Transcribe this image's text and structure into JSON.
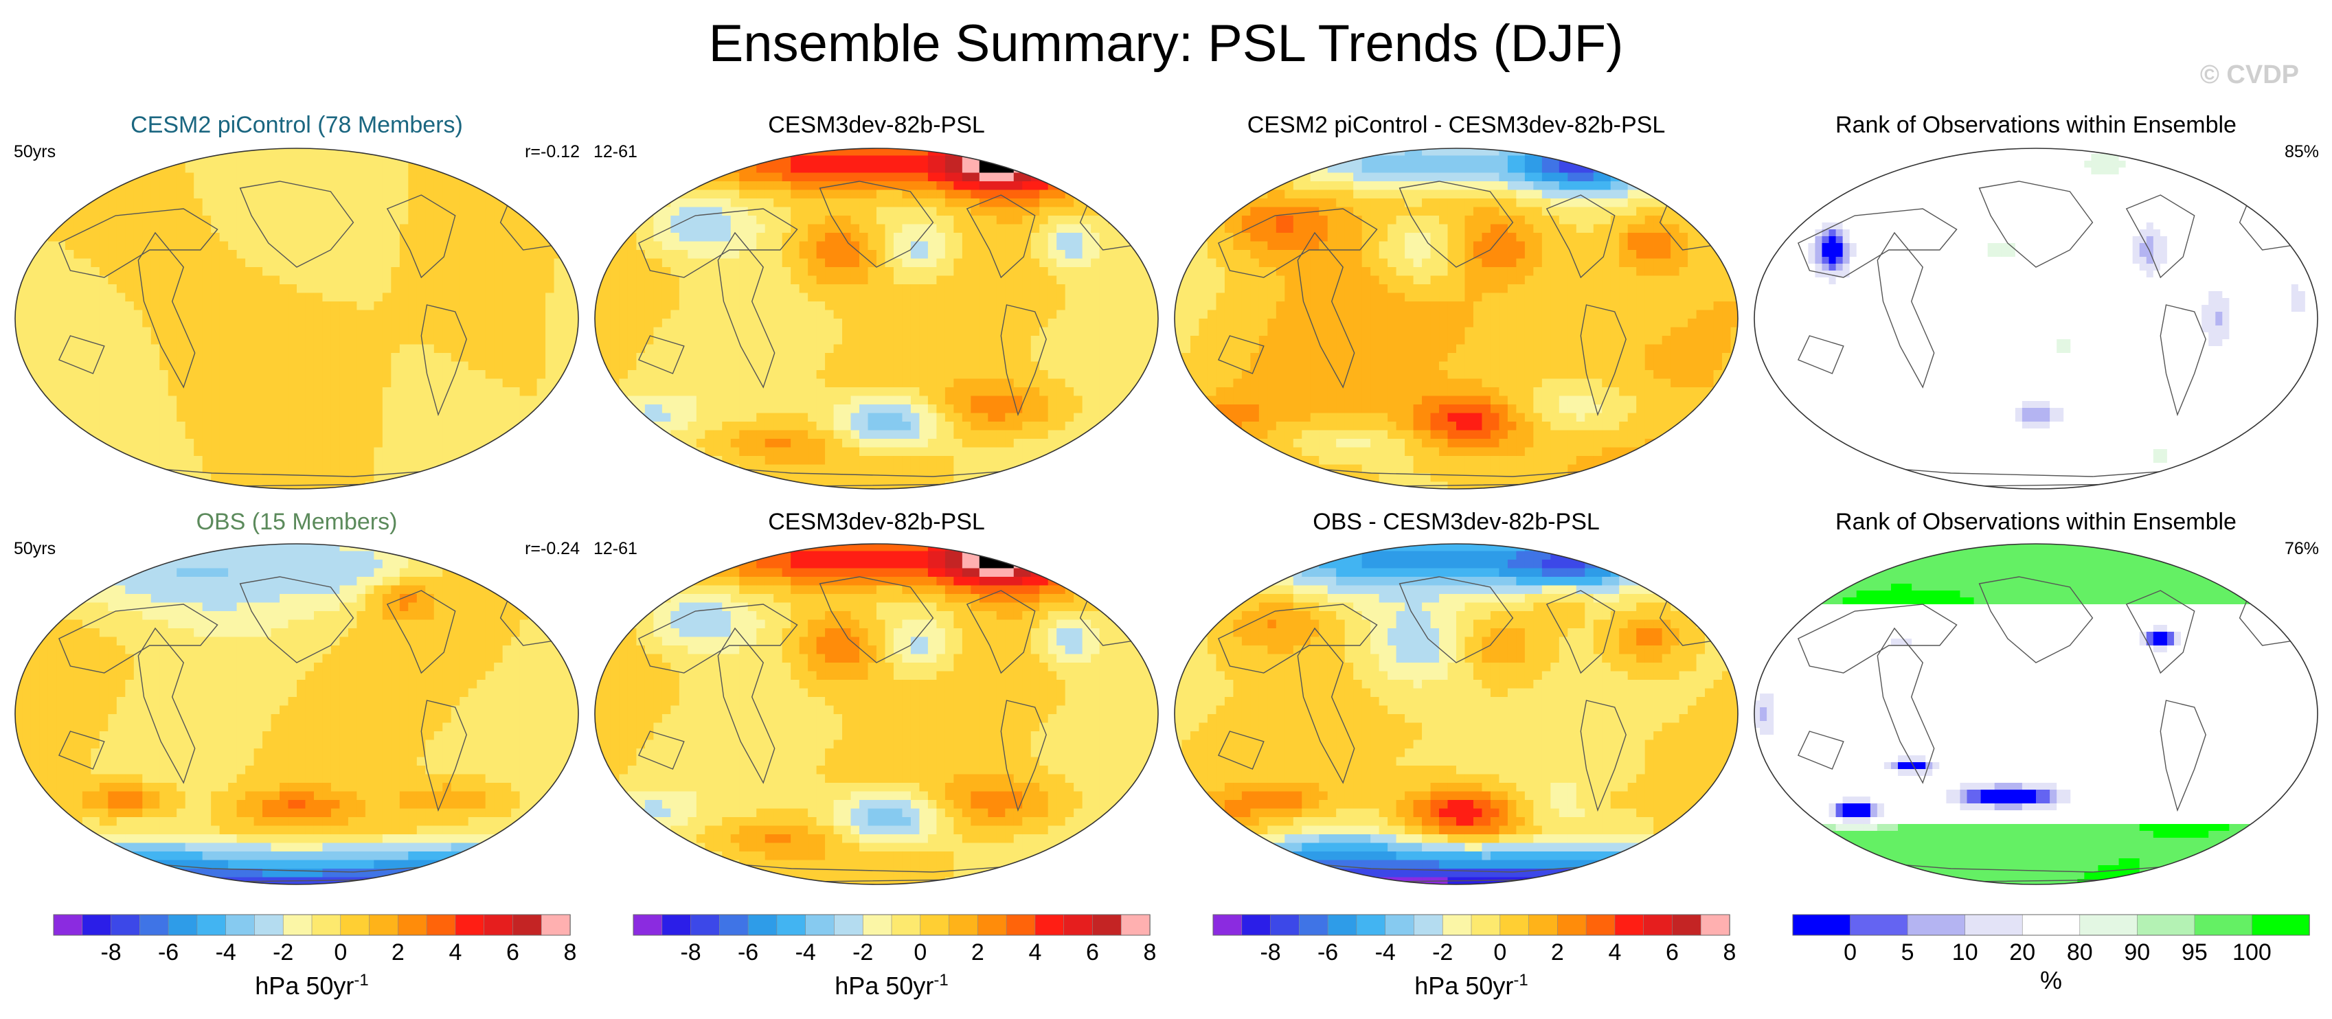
{
  "title": "Ensemble Summary: PSL Trends (DJF)",
  "watermark": "© CVDP",
  "panels": [
    {
      "title": "CESM2 piControl (78 Members)",
      "title_color": "#1a6680",
      "left_label": "50yrs",
      "right_label": "r=-0.12",
      "field": "ens_mean",
      "amp": 0.6
    },
    {
      "title": "CESM3dev-82b-PSL",
      "title_color": "#000000",
      "left_label": "12-61",
      "right_label": "",
      "field": "model",
      "amp": 1.0
    },
    {
      "title": "CESM2 piControl - CESM3dev-82b-PSL",
      "title_color": "#000000",
      "left_label": "",
      "right_label": "",
      "field": "diff_ens",
      "amp": 1.0
    },
    {
      "title": "Rank of Observations within Ensemble",
      "title_color": "#000000",
      "left_label": "",
      "right_label": "85%",
      "field": "rank_ens",
      "amp": 1.0
    },
    {
      "title": "OBS (15 Members)",
      "title_color": "#5b8a5b",
      "left_label": "50yrs",
      "right_label": "r=-0.24",
      "field": "obs",
      "amp": 1.0
    },
    {
      "title": "CESM3dev-82b-PSL",
      "title_color": "#000000",
      "left_label": "12-61",
      "right_label": "",
      "field": "model",
      "amp": 1.0
    },
    {
      "title": "OBS - CESM3dev-82b-PSL",
      "title_color": "#000000",
      "left_label": "",
      "right_label": "",
      "field": "diff_obs",
      "amp": 1.0
    },
    {
      "title": "Rank of Observations within Ensemble",
      "title_color": "#000000",
      "left_label": "",
      "right_label": "76%",
      "field": "rank_obs",
      "amp": 1.0
    }
  ],
  "colorbars": [
    {
      "label": "hPa 50yr",
      "label_sup": "-1"
    },
    {
      "label": "hPa 50yr",
      "label_sup": "-1"
    },
    {
      "label": "hPa 50yr",
      "label_sup": "-1"
    },
    {
      "label": "%",
      "label_sup": ""
    }
  ],
  "chart_data": {
    "type": "heatmap",
    "projection": "robinson",
    "units": "hPa 50yr-1",
    "trend_levels": [
      -9,
      -8,
      -7,
      -6,
      -5,
      -4,
      -3,
      -2,
      -1,
      0,
      1,
      2,
      3,
      4,
      5,
      6,
      7,
      8,
      9
    ],
    "trend_ticks": [
      -8,
      -6,
      -4,
      -2,
      0,
      2,
      4,
      6,
      8
    ],
    "trend_colors": [
      "#8b2be0",
      "#2b1ee8",
      "#3c48e8",
      "#3f74e6",
      "#2e9ce8",
      "#42b4f2",
      "#86caf0",
      "#b4dcf0",
      "#fbf6a6",
      "#fde96e",
      "#ffcf33",
      "#ffb319",
      "#ff8c0a",
      "#ff640a",
      "#ff1e14",
      "#e61e1e",
      "#c42424",
      "#ffb0b0"
    ],
    "rank_levels": [
      0,
      5,
      10,
      20,
      80,
      90,
      95,
      100
    ],
    "rank_ticks": [
      0,
      5,
      10,
      20,
      80,
      90,
      95,
      100
    ],
    "rank_colors": [
      "#0000ff",
      "#6464f2",
      "#b4b4f2",
      "#e3e3f7",
      "#ffffff",
      "#e3f7e3",
      "#b4f2b4",
      "#64f064",
      "#00ff00"
    ],
    "rank_percent": [
      85,
      76
    ],
    "pattern_correlations": [
      -0.12,
      -0.24
    ],
    "ensemble_members": {
      "CESM2 piControl": 78,
      "OBS": 15
    },
    "trend_length_years": 50,
    "model_years": "12-61"
  }
}
